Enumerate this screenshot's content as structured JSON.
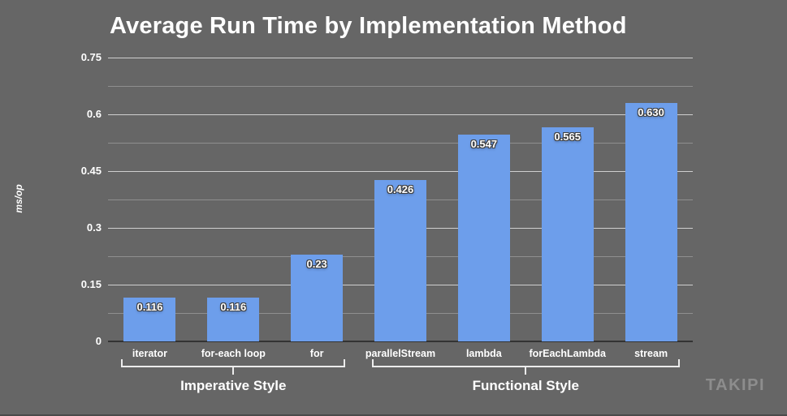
{
  "watermark": "TAKIPI",
  "chart_data": {
    "type": "bar",
    "title": "Average Run Time by Implementation Method",
    "xlabel": "",
    "ylabel": "ms/op",
    "ylim": [
      0,
      0.75
    ],
    "ytick_labels": [
      "0",
      "0.15",
      "0.3",
      "0.45",
      "0.6",
      "0.75"
    ],
    "minor_grid_step": 0.075,
    "grid": "on",
    "legend": "none",
    "categories": [
      "iterator",
      "for-each loop",
      "for",
      "parallelStream",
      "lambda",
      "forEachLambda",
      "stream"
    ],
    "values": [
      0.116,
      0.116,
      0.23,
      0.426,
      0.547,
      0.565,
      0.63
    ],
    "value_labels": [
      "0.116",
      "0.116",
      "0.23",
      "0.426",
      "0.547",
      "0.565",
      "0.630"
    ],
    "groups": [
      {
        "label": "Imperative Style",
        "start": 0,
        "end": 2
      },
      {
        "label": "Functional Style",
        "start": 3,
        "end": 6
      }
    ],
    "colors": {
      "background": "#666666",
      "bar": "#6d9eeb",
      "text": "#ffffff",
      "gridline_major": "#cfcfcf",
      "gridline_minor": "#8f8f8f",
      "baseline": "#333333",
      "bracket": "#ececec",
      "watermark": "#8d8d8d"
    }
  }
}
